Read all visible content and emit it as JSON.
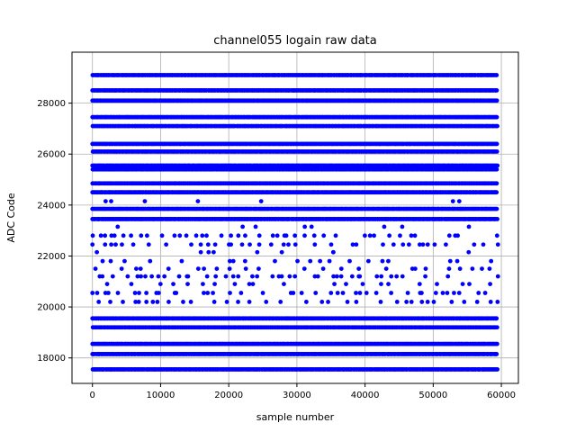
{
  "chart_data": {
    "type": "scatter",
    "title": "channel055 logain raw data",
    "xlabel": "sample number",
    "ylabel": "ADC Code",
    "xlim": [
      -3000,
      62500
    ],
    "ylim": [
      17000,
      30000
    ],
    "x_ticks": [
      0,
      10000,
      20000,
      30000,
      40000,
      50000,
      60000
    ],
    "y_ticks": [
      18000,
      20000,
      22000,
      24000,
      26000,
      28000
    ],
    "x_tick_labels": [
      "0",
      "10000",
      "20000",
      "30000",
      "40000",
      "50000",
      "60000"
    ],
    "y_tick_labels": [
      "18000",
      "20000",
      "22000",
      "24000",
      "26000",
      "28000"
    ],
    "grid": true,
    "legend": "none",
    "color": "#0000ff",
    "x_range": [
      0,
      59500
    ],
    "levels": [
      {
        "y": 29100,
        "density": "dense"
      },
      {
        "y": 28500,
        "density": "dense"
      },
      {
        "y": 28100,
        "density": "dense"
      },
      {
        "y": 27450,
        "density": "dense"
      },
      {
        "y": 27100,
        "density": "dense"
      },
      {
        "y": 26400,
        "density": "dense"
      },
      {
        "y": 26100,
        "density": "dense"
      },
      {
        "y": 25550,
        "density": "dense"
      },
      {
        "y": 25400,
        "density": "dense"
      },
      {
        "y": 24850,
        "density": "dense"
      },
      {
        "y": 24500,
        "density": "dense"
      },
      {
        "y": 24150,
        "density": "rare"
      },
      {
        "y": 23850,
        "density": "dense"
      },
      {
        "y": 23450,
        "density": "dense"
      },
      {
        "y": 23150,
        "density": "rare"
      },
      {
        "y": 22800,
        "density": "medium"
      },
      {
        "y": 22450,
        "density": "medium"
      },
      {
        "y": 22150,
        "density": "rare"
      },
      {
        "y": 21800,
        "density": "sparse"
      },
      {
        "y": 21500,
        "density": "sparse"
      },
      {
        "y": 21200,
        "density": "medium"
      },
      {
        "y": 20900,
        "density": "sparse"
      },
      {
        "y": 20550,
        "density": "medium"
      },
      {
        "y": 20200,
        "density": "medium"
      },
      {
        "y": 19550,
        "density": "dense"
      },
      {
        "y": 19200,
        "density": "dense"
      },
      {
        "y": 18550,
        "density": "dense"
      },
      {
        "y": 18150,
        "density": "dense"
      },
      {
        "y": 17550,
        "density": "dense"
      }
    ]
  }
}
